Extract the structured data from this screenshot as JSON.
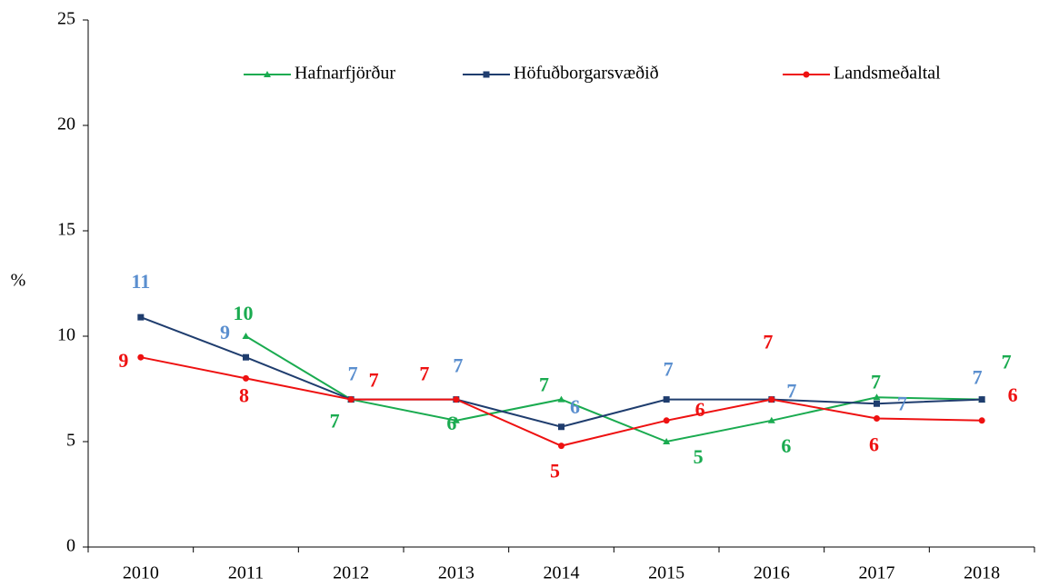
{
  "chart_data": {
    "type": "line",
    "y_label": "%",
    "categories": [
      "2010",
      "2011",
      "2012",
      "2013",
      "2014",
      "2015",
      "2016",
      "2017",
      "2018"
    ],
    "series": [
      {
        "name": "Hafnarfjörður",
        "color": "#1aab50",
        "label_color": "#1aab50",
        "marker": "triangle",
        "values": [
          null,
          10,
          7,
          6,
          7,
          5,
          6,
          7.1,
          7
        ],
        "value_labels": [
          null,
          "10",
          "7",
          "6",
          "7",
          "5",
          "6",
          "7",
          "7"
        ]
      },
      {
        "name": "Höfuðborgarsvæðið",
        "color": "#1f3d6e",
        "label_color": "#5b8fcf",
        "marker": "square",
        "values": [
          10.9,
          9,
          7,
          7,
          5.7,
          7,
          7,
          6.8,
          7
        ],
        "value_labels": [
          "11",
          "9",
          "7",
          "7",
          "6",
          "7",
          "7",
          "7",
          "7"
        ]
      },
      {
        "name": "Landsmeðaltal",
        "color": "#ee1111",
        "label_color": "#ee1111",
        "marker": "circle",
        "values": [
          9,
          8,
          7,
          7,
          4.8,
          6,
          7,
          6.1,
          6
        ],
        "value_labels": [
          "9",
          "8",
          "7",
          "7",
          "5",
          "6",
          "7",
          "6",
          "6"
        ]
      }
    ],
    "ylim": [
      0,
      25
    ],
    "yticks": [
      0,
      5,
      10,
      15,
      20,
      25
    ],
    "grid": false,
    "legend": "top"
  }
}
